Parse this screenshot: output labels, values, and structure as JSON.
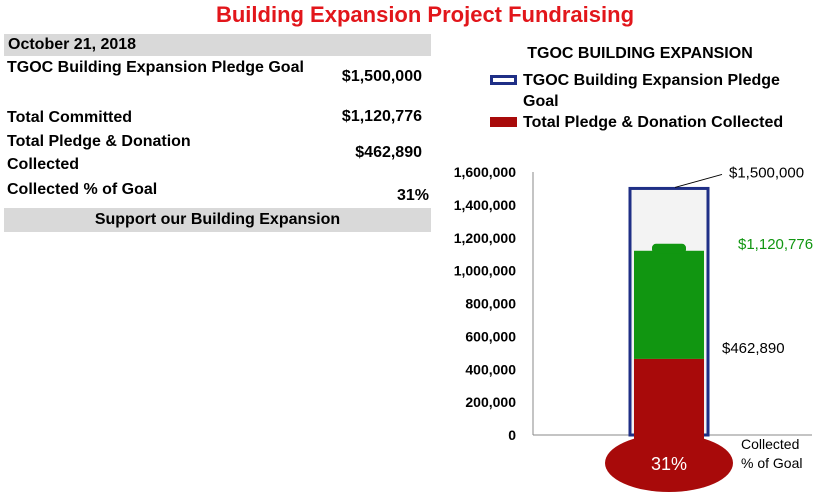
{
  "page_title": "Building Expansion Project Fundraising",
  "summary": {
    "date": "October 21, 2018",
    "rows": [
      {
        "label": "TGOC Building Expansion  Pledge Goal",
        "value": "$1,500,000"
      },
      {
        "label": "Total Committed",
        "value": "$1,120,776"
      },
      {
        "label": "Total Pledge & Donation Collected",
        "value": "$462,890"
      },
      {
        "label": "Collected % of Goal",
        "value": "31%"
      }
    ],
    "support_banner": "Support our Building Expansion"
  },
  "chart_data": {
    "type": "bar",
    "title": "TGOC BUILDING EXPANSION",
    "ylim": [
      0,
      1600000
    ],
    "yticks": [
      0,
      200000,
      400000,
      600000,
      800000,
      1000000,
      1200000,
      1400000,
      1600000
    ],
    "ytick_labels": [
      "0",
      "200,000",
      "400,000",
      "600,000",
      "800,000",
      "1,000,000",
      "1,200,000",
      "1,400,000",
      "1,600,000"
    ],
    "series": [
      {
        "name": "TGOC Building Expansion  Pledge Goal",
        "value": 1500000,
        "label": "$1,500,000",
        "color": "#1f2f86"
      },
      {
        "name": "Total Committed",
        "value": 1120776,
        "label": "$1,120,776",
        "color": "#119611"
      },
      {
        "name": "Total Pledge & Donation Collected",
        "value": 462890,
        "label": "$462,890",
        "color": "#a80a0a"
      }
    ],
    "legend": [
      {
        "label": "TGOC Building Expansion  Pledge Goal",
        "style": "outline",
        "color": "#1f2f86"
      },
      {
        "label": "Total Pledge & Donation Collected",
        "style": "fill",
        "color": "#a80a0a"
      }
    ],
    "bulb_label": "31%",
    "bulb_caption": "Collected % of Goal",
    "legend_position": "top"
  }
}
